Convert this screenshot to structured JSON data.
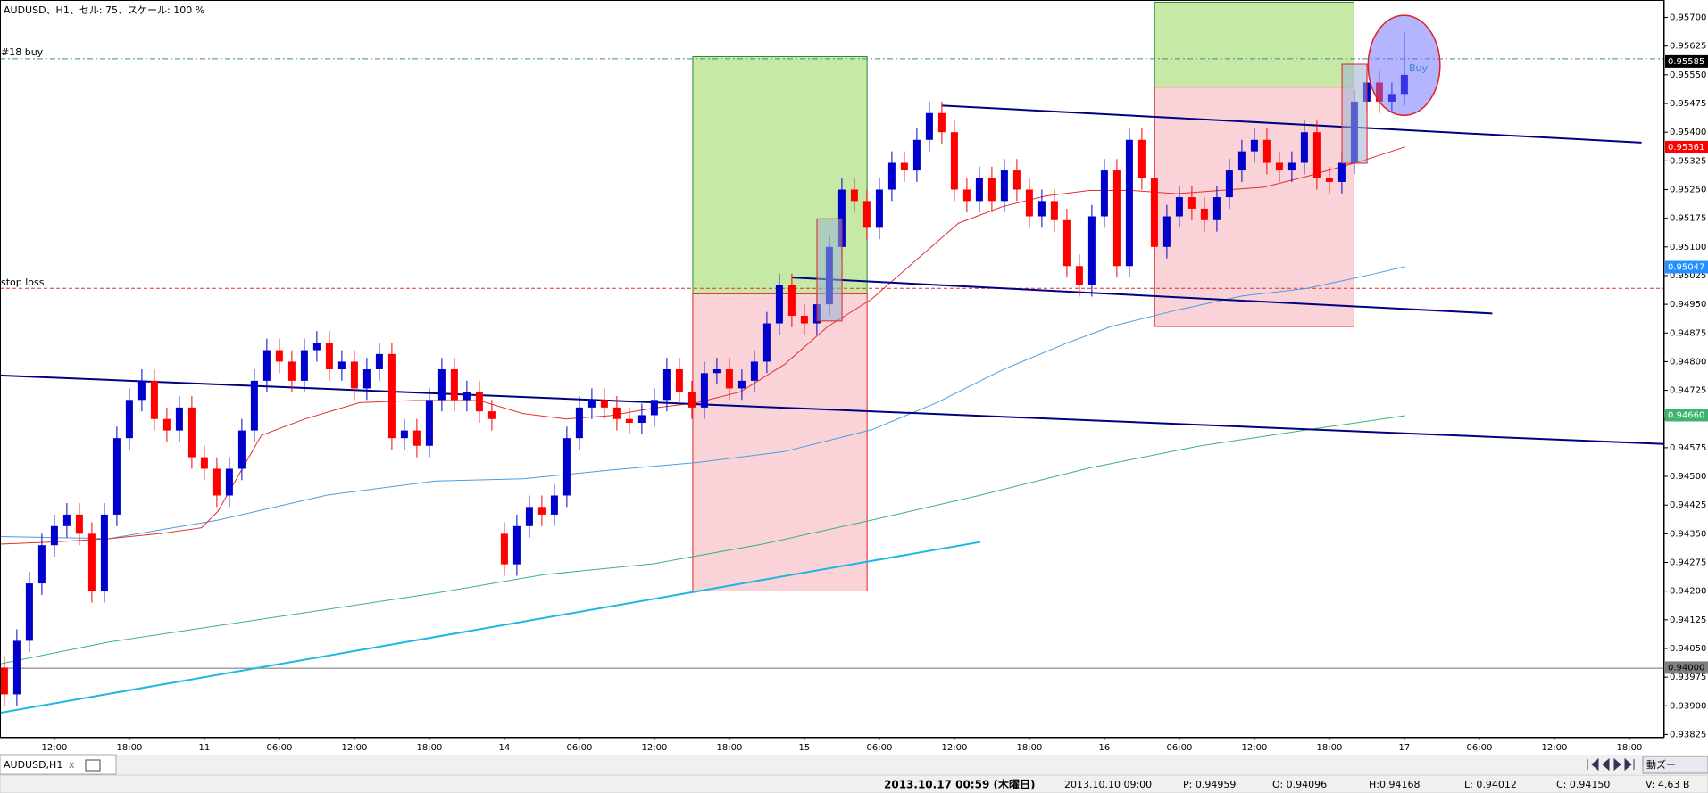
{
  "chart_data": {
    "type": "candlestick",
    "title": "AUDUSD、H1、セル: 75、スケール: 100 %",
    "categories": [
      null,
      null,
      null,
      null,
      "12:00",
      null,
      null,
      null,
      null,
      null,
      "18:00",
      null,
      null,
      null,
      null,
      null,
      "11",
      null,
      null,
      null,
      null,
      null,
      "06:00",
      null,
      null,
      null,
      null,
      null,
      "12:00",
      null,
      null,
      null,
      null,
      null,
      "18:00",
      null,
      null,
      null,
      null,
      null,
      "14",
      null,
      null,
      null,
      null,
      null,
      "06:00",
      null,
      null,
      null,
      null,
      null,
      "12:00",
      null,
      null,
      null,
      null,
      null,
      "18:00",
      null,
      null,
      null,
      null,
      null,
      "15",
      null,
      null,
      null,
      null,
      null,
      "06:00",
      null,
      null,
      null,
      null,
      null,
      "12:00",
      null,
      null,
      null,
      null,
      null,
      "18:00",
      null,
      null,
      null,
      null,
      null,
      "16",
      null,
      null,
      null,
      null,
      null,
      "06:00",
      null,
      null,
      null,
      null,
      null,
      "12:00",
      null,
      null,
      null,
      null,
      null,
      "18:00",
      null,
      null,
      null,
      null,
      null,
      "17"
    ],
    "future_categories": [
      "06:00",
      "12:00",
      "18:00"
    ],
    "ohlc": [
      [
        0.94,
        0.9403,
        0.939,
        0.9393
      ],
      [
        0.9393,
        0.941,
        0.939,
        0.9407
      ],
      [
        0.9407,
        0.9425,
        0.9404,
        0.9422
      ],
      [
        0.9422,
        0.9435,
        0.9419,
        0.9432
      ],
      [
        0.9432,
        0.944,
        0.9429,
        0.9437
      ],
      [
        0.9437,
        0.9443,
        0.9434,
        0.944
      ],
      [
        0.944,
        0.9443,
        0.9432,
        0.9435
      ],
      [
        0.9435,
        0.9438,
        0.9417,
        0.942
      ],
      [
        0.942,
        0.9443,
        0.9417,
        0.944
      ],
      [
        0.944,
        0.9463,
        0.9437,
        0.946
      ],
      [
        0.946,
        0.9473,
        0.9457,
        0.947
      ],
      [
        0.947,
        0.9478,
        0.9467,
        0.9475
      ],
      [
        0.9475,
        0.9478,
        0.9462,
        0.9465
      ],
      [
        0.9465,
        0.9468,
        0.9459,
        0.9462
      ],
      [
        0.9462,
        0.9471,
        0.9459,
        0.9468
      ],
      [
        0.9468,
        0.9471,
        0.9452,
        0.9455
      ],
      [
        0.9455,
        0.9458,
        0.9449,
        0.9452
      ],
      [
        0.9452,
        0.9455,
        0.9442,
        0.9445
      ],
      [
        0.9445,
        0.9455,
        0.9442,
        0.9452
      ],
      [
        0.9452,
        0.9465,
        0.9449,
        0.9462
      ],
      [
        0.9462,
        0.9478,
        0.9459,
        0.9475
      ],
      [
        0.9475,
        0.9486,
        0.9472,
        0.9483
      ],
      [
        0.9483,
        0.9486,
        0.9477,
        0.948
      ],
      [
        0.948,
        0.9483,
        0.9472,
        0.9475
      ],
      [
        0.9475,
        0.9486,
        0.9472,
        0.9483
      ],
      [
        0.9483,
        0.9488,
        0.948,
        0.9485
      ],
      [
        0.9485,
        0.9488,
        0.9475,
        0.9478
      ],
      [
        0.9478,
        0.9483,
        0.9475,
        0.948
      ],
      [
        0.948,
        0.9483,
        0.947,
        0.9473
      ],
      [
        0.9473,
        0.9481,
        0.947,
        0.9478
      ],
      [
        0.9478,
        0.9485,
        0.9475,
        0.9482
      ],
      [
        0.9482,
        0.9485,
        0.9457,
        0.946
      ],
      [
        0.946,
        0.9465,
        0.9457,
        0.9462
      ],
      [
        0.9462,
        0.9465,
        0.9455,
        0.9458
      ],
      [
        0.9458,
        0.9473,
        0.9455,
        0.947
      ],
      [
        0.947,
        0.9481,
        0.9467,
        0.9478
      ],
      [
        0.9478,
        0.9481,
        0.9467,
        0.947
      ],
      [
        0.947,
        0.9475,
        0.9467,
        0.9472
      ],
      [
        0.9472,
        0.9475,
        0.9464,
        0.9467
      ],
      [
        0.9467,
        0.947,
        0.9462,
        0.9465
      ],
      [
        0.9435,
        0.9438,
        0.9424,
        0.9427
      ],
      [
        0.9427,
        0.944,
        0.9424,
        0.9437
      ],
      [
        0.9437,
        0.9445,
        0.9434,
        0.9442
      ],
      [
        0.9442,
        0.9445,
        0.9437,
        0.944
      ],
      [
        0.944,
        0.9448,
        0.9437,
        0.9445
      ],
      [
        0.9445,
        0.9463,
        0.9442,
        0.946
      ],
      [
        0.946,
        0.9471,
        0.9457,
        0.9468
      ],
      [
        0.9468,
        0.9473,
        0.9465,
        0.947
      ],
      [
        0.947,
        0.9473,
        0.9465,
        0.9468
      ],
      [
        0.9468,
        0.9471,
        0.9462,
        0.9465
      ],
      [
        0.9465,
        0.9468,
        0.9461,
        0.9464
      ],
      [
        0.9464,
        0.9469,
        0.9461,
        0.9466
      ],
      [
        0.9466,
        0.9473,
        0.9463,
        0.947
      ],
      [
        0.947,
        0.9481,
        0.9467,
        0.9478
      ],
      [
        0.9478,
        0.9481,
        0.9469,
        0.9472
      ],
      [
        0.9472,
        0.9475,
        0.9465,
        0.9468
      ],
      [
        0.9468,
        0.948,
        0.9465,
        0.9477
      ],
      [
        0.9477,
        0.9481,
        0.9474,
        0.9478
      ],
      [
        0.9478,
        0.9481,
        0.947,
        0.9473
      ],
      [
        0.9473,
        0.9478,
        0.947,
        0.9475
      ],
      [
        0.9475,
        0.9483,
        0.9472,
        0.948
      ],
      [
        0.948,
        0.9493,
        0.9477,
        0.949
      ],
      [
        0.949,
        0.9503,
        0.9487,
        0.95
      ],
      [
        0.95,
        0.9503,
        0.9489,
        0.9492
      ],
      [
        0.9492,
        0.9495,
        0.9487,
        0.949
      ],
      [
        0.949,
        0.9498,
        0.9487,
        0.9495
      ],
      [
        0.9495,
        0.9513,
        0.9492,
        0.951
      ],
      [
        0.951,
        0.9528,
        0.9507,
        0.9525
      ],
      [
        0.9525,
        0.9528,
        0.9519,
        0.9522
      ],
      [
        0.9522,
        0.9525,
        0.9512,
        0.9515
      ],
      [
        0.9515,
        0.9528,
        0.9512,
        0.9525
      ],
      [
        0.9525,
        0.9535,
        0.9522,
        0.9532
      ],
      [
        0.9532,
        0.9535,
        0.9527,
        0.953
      ],
      [
        0.953,
        0.9541,
        0.9527,
        0.9538
      ],
      [
        0.9538,
        0.9548,
        0.9535,
        0.9545
      ],
      [
        0.9545,
        0.9548,
        0.9537,
        0.954
      ],
      [
        0.954,
        0.9543,
        0.9522,
        0.9525
      ],
      [
        0.9525,
        0.9528,
        0.9519,
        0.9522
      ],
      [
        0.9522,
        0.9531,
        0.9519,
        0.9528
      ],
      [
        0.9528,
        0.9531,
        0.9519,
        0.9522
      ],
      [
        0.9522,
        0.9533,
        0.9519,
        0.953
      ],
      [
        0.953,
        0.9533,
        0.9522,
        0.9525
      ],
      [
        0.9525,
        0.9528,
        0.9515,
        0.9518
      ],
      [
        0.9518,
        0.9525,
        0.9515,
        0.9522
      ],
      [
        0.9522,
        0.9525,
        0.9514,
        0.9517
      ],
      [
        0.9517,
        0.952,
        0.9502,
        0.9505
      ],
      [
        0.9505,
        0.9508,
        0.9497,
        0.95
      ],
      [
        0.95,
        0.9521,
        0.9497,
        0.9518
      ],
      [
        0.9518,
        0.9533,
        0.9515,
        0.953
      ],
      [
        0.953,
        0.9533,
        0.9502,
        0.9505
      ],
      [
        0.9505,
        0.9541,
        0.9502,
        0.9538
      ],
      [
        0.9538,
        0.9541,
        0.9525,
        0.9528
      ],
      [
        0.9528,
        0.9531,
        0.9507,
        0.951
      ],
      [
        0.951,
        0.9521,
        0.9507,
        0.9518
      ],
      [
        0.9518,
        0.9526,
        0.9515,
        0.9523
      ],
      [
        0.9523,
        0.9526,
        0.9517,
        0.952
      ],
      [
        0.952,
        0.9523,
        0.9514,
        0.9517
      ],
      [
        0.9517,
        0.9526,
        0.9514,
        0.9523
      ],
      [
        0.9523,
        0.9533,
        0.952,
        0.953
      ],
      [
        0.953,
        0.9538,
        0.9527,
        0.9535
      ],
      [
        0.9535,
        0.9541,
        0.9532,
        0.9538
      ],
      [
        0.9538,
        0.9541,
        0.9529,
        0.9532
      ],
      [
        0.9532,
        0.9535,
        0.9527,
        0.953
      ],
      [
        0.953,
        0.9535,
        0.9527,
        0.9532
      ],
      [
        0.9532,
        0.9543,
        0.9529,
        0.954
      ],
      [
        0.954,
        0.9543,
        0.9525,
        0.9528
      ],
      [
        0.9528,
        0.9531,
        0.9524,
        0.9527
      ],
      [
        0.9527,
        0.9535,
        0.9524,
        0.9532
      ],
      [
        0.9532,
        0.9551,
        0.9529,
        0.9548
      ],
      [
        0.9548,
        0.9556,
        0.9545,
        0.9553
      ],
      [
        0.9553,
        0.9556,
        0.9545,
        0.9548
      ],
      [
        0.9548,
        0.9553,
        0.9545,
        0.955
      ],
      [
        0.955,
        0.9566,
        0.9547,
        0.9555
      ]
    ],
    "up_color": "#0000cd",
    "down_color": "#ff0000",
    "ylim": [
      0.93819,
      0.95741
    ],
    "yticks": [
      {
        "value": 0.957,
        "label": "0.95700"
      },
      {
        "value": 0.95625,
        "label": "0.95625"
      },
      {
        "value": 0.9555,
        "label": "0.95550"
      },
      {
        "value": 0.95475,
        "label": "0.95475"
      },
      {
        "value": 0.954,
        "label": "0.95400"
      },
      {
        "value": 0.95325,
        "label": "0.95325"
      },
      {
        "value": 0.9525,
        "label": "0.95250"
      },
      {
        "value": 0.95175,
        "label": "0.95175"
      },
      {
        "value": 0.951,
        "label": "0.95100"
      },
      {
        "value": 0.95025,
        "label": "0.95025"
      },
      {
        "value": 0.9495,
        "label": "0.94950"
      },
      {
        "value": 0.94875,
        "label": "0.94875"
      },
      {
        "value": 0.948,
        "label": "0.94800"
      },
      {
        "value": 0.94725,
        "label": "0.94725"
      },
      {
        "value": 0.9465,
        "label": "0.94650"
      },
      {
        "value": 0.94575,
        "label": "0.94575"
      },
      {
        "value": 0.945,
        "label": "0.94500"
      },
      {
        "value": 0.94425,
        "label": "0.94425"
      },
      {
        "value": 0.9435,
        "label": "0.94350"
      },
      {
        "value": 0.94275,
        "label": "0.94275"
      },
      {
        "value": 0.942,
        "label": "0.94200"
      },
      {
        "value": 0.94125,
        "label": "0.94125"
      },
      {
        "value": 0.9405,
        "label": "0.94050"
      },
      {
        "value": 0.93975,
        "label": "0.93975"
      },
      {
        "value": 0.939,
        "label": "0.93900"
      },
      {
        "value": 0.93825,
        "label": "0.93825"
      }
    ],
    "price_markers": [
      {
        "value": 0.95585,
        "label": "0.95585",
        "color": "#000000"
      },
      {
        "value": 0.95361,
        "label": "0.95361",
        "color": "#ff0000"
      },
      {
        "value": 0.95047,
        "label": "0.95047",
        "color": "#1e90ff"
      },
      {
        "value": 0.9466,
        "label": "0.94660",
        "color": "#3cb371"
      },
      {
        "value": 0.94,
        "label": "0.94000",
        "color": "#808080"
      }
    ],
    "annotations": {
      "buy_level": "#18 buy",
      "stop_loss": "stop loss",
      "order": "Buy"
    }
  },
  "tab": {
    "symbol": "AUDUSD,H1",
    "close": "x"
  },
  "zoom_button": "動ズー",
  "status": {
    "time": "2013.10.17 00:59 (木曜日)",
    "bar_time": "2013.10.10 09:00",
    "p": "P: 0.94959",
    "o": "O: 0.94096",
    "h": "H:0.94168",
    "l": "L: 0.94012",
    "c": "C: 0.94150",
    "v": "V: 4.63 B"
  }
}
